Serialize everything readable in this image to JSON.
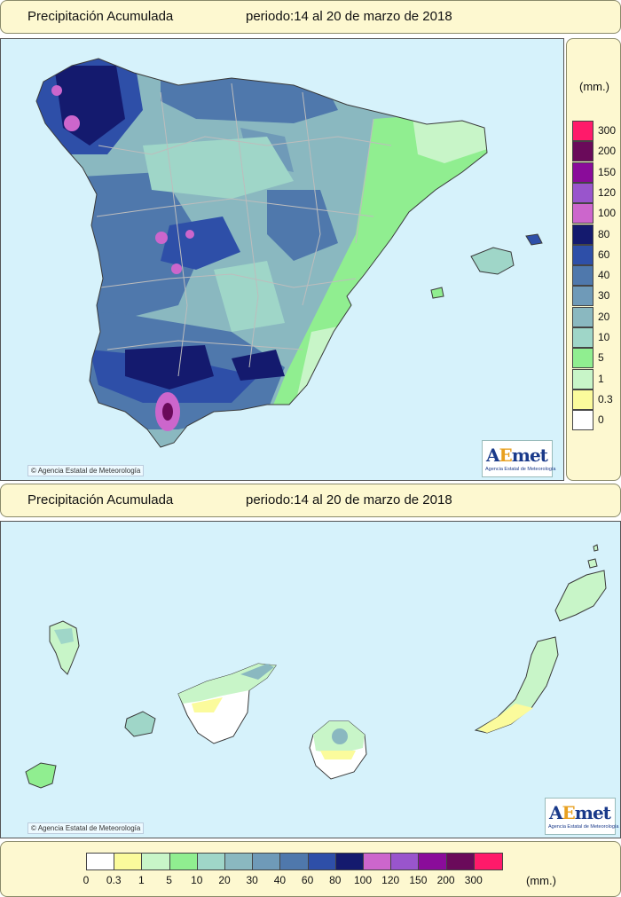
{
  "top_header": {
    "title": "Precipitación Acumulada",
    "period": "periodo:14 al 20 de marzo de 2018"
  },
  "canary_header": {
    "title": "Precipitación Acumulada",
    "period": "periodo:14 al 20 de marzo de 2018"
  },
  "credits": {
    "copyright_symbol": "©",
    "agency": "Agencia Estatal de Meteorología",
    "logo_a": "A",
    "logo_e": "E",
    "logo_rest": "met",
    "logo_sub": "Agencia Estatal de Meteorología"
  },
  "legend": {
    "unit": "(mm.)",
    "classes": [
      {
        "label": "0",
        "color": "#ffffff"
      },
      {
        "label": "0.3",
        "color": "#fbfb9c"
      },
      {
        "label": "1",
        "color": "#c8f5c8"
      },
      {
        "label": "5",
        "color": "#90ee90"
      },
      {
        "label": "10",
        "color": "#9fd6c8"
      },
      {
        "label": "20",
        "color": "#8ab8c0"
      },
      {
        "label": "30",
        "color": "#6f9ab8"
      },
      {
        "label": "40",
        "color": "#4f78ac"
      },
      {
        "label": "60",
        "color": "#2e4fa8"
      },
      {
        "label": "80",
        "color": "#141a6e"
      },
      {
        "label": "100",
        "color": "#cc66cc"
      },
      {
        "label": "120",
        "color": "#9955cc"
      },
      {
        "label": "150",
        "color": "#8a0c9a"
      },
      {
        "label": "200",
        "color": "#6a0a5a"
      },
      {
        "label": "300",
        "color": "#ff1a6a"
      }
    ]
  },
  "map_colors": {
    "sea": "#d6f2fb",
    "border": "#bdbdbd",
    "coast": "#3a3a3a"
  }
}
